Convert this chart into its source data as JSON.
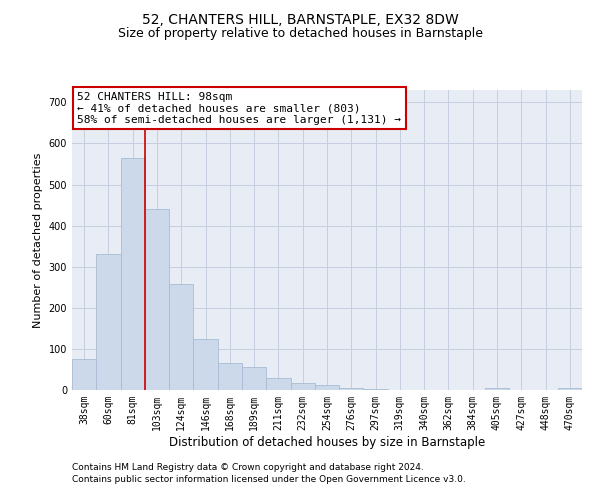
{
  "title1": "52, CHANTERS HILL, BARNSTAPLE, EX32 8DW",
  "title2": "Size of property relative to detached houses in Barnstaple",
  "xlabel": "Distribution of detached houses by size in Barnstaple",
  "ylabel": "Number of detached properties",
  "categories": [
    "38sqm",
    "60sqm",
    "81sqm",
    "103sqm",
    "124sqm",
    "146sqm",
    "168sqm",
    "189sqm",
    "211sqm",
    "232sqm",
    "254sqm",
    "276sqm",
    "297sqm",
    "319sqm",
    "340sqm",
    "362sqm",
    "384sqm",
    "405sqm",
    "427sqm",
    "448sqm",
    "470sqm"
  ],
  "values": [
    75,
    330,
    565,
    440,
    258,
    125,
    65,
    55,
    30,
    18,
    12,
    5,
    2,
    1,
    0,
    0,
    0,
    5,
    0,
    0,
    5
  ],
  "bar_color": "#ccd9ea",
  "bar_edge_color": "#a8bcd4",
  "vline_x_index": 3,
  "vline_color": "#cc0000",
  "annotation_text": "52 CHANTERS HILL: 98sqm\n← 41% of detached houses are smaller (803)\n58% of semi-detached houses are larger (1,131) →",
  "annotation_box_color": "#ffffff",
  "annotation_box_edge": "#cc0000",
  "ylim": [
    0,
    730
  ],
  "yticks": [
    0,
    100,
    200,
    300,
    400,
    500,
    600,
    700
  ],
  "footer1": "Contains HM Land Registry data © Crown copyright and database right 2024.",
  "footer2": "Contains public sector information licensed under the Open Government Licence v3.0.",
  "bg_color": "#ffffff",
  "plot_bg_color": "#e8edf5",
  "grid_color": "#c5cfe0",
  "title1_fontsize": 10,
  "title2_fontsize": 9,
  "xlabel_fontsize": 8.5,
  "ylabel_fontsize": 8,
  "tick_fontsize": 7,
  "annotation_fontsize": 8,
  "footer_fontsize": 6.5
}
